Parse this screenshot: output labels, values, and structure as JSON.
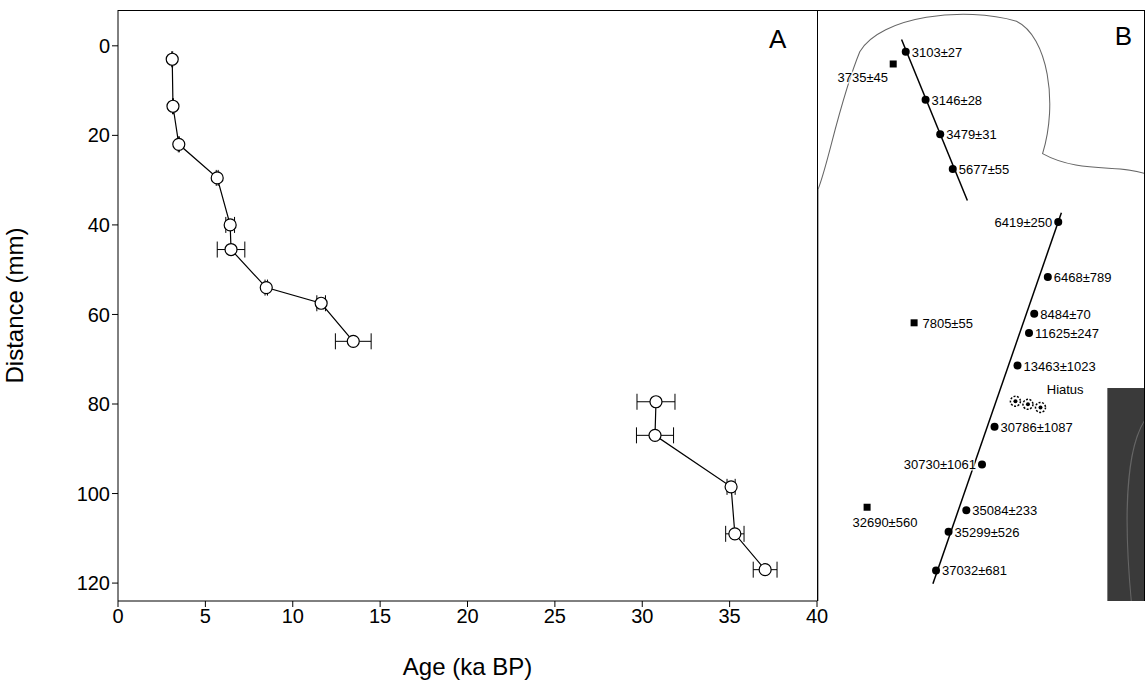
{
  "chart_data": {
    "type": "line",
    "title": "A",
    "x_label": "Age (ka BP)",
    "y_label": "Distance (mm)",
    "xlim": [
      0,
      40
    ],
    "xticks": [
      0,
      5,
      10,
      15,
      20,
      25,
      30,
      35,
      40
    ],
    "ylim": [
      -8,
      124
    ],
    "yticks": [
      0,
      20,
      40,
      60,
      80,
      100,
      120
    ],
    "log": false,
    "grid": false,
    "series": [
      {
        "color": "#000000",
        "marker": "circle",
        "line_style": "solid",
        "x": [
          3.103,
          3.146,
          3.479,
          5.677,
          6.419,
          6.468,
          8.484,
          11.625,
          13.463
        ],
        "values": [
          3,
          13.5,
          22,
          29.5,
          40,
          45.5,
          54,
          57.5,
          66
        ],
        "x_error": [
          0.027,
          0.028,
          0.031,
          0.055,
          0.25,
          0.789,
          0.07,
          0.247,
          1.023
        ]
      },
      {
        "color": "#000000",
        "marker": "circle",
        "line_style": "solid",
        "x": [
          30.786,
          30.73,
          35.084,
          35.299,
          37.032
        ],
        "values": [
          79.5,
          87,
          98.5,
          109,
          117
        ],
        "x_error": [
          1.087,
          1.061,
          0.233,
          0.526,
          0.681
        ]
      }
    ]
  },
  "panel_b": {
    "letter": "B",
    "hiatus": "Hiatus",
    "dated_points": [
      "3103±27",
      "3146±28",
      "3479±31",
      "5677±55",
      "6419±250",
      "6468±789",
      "8484±70",
      "11625±247",
      "13463±1023",
      "30786±1087",
      "30730±1061",
      "35084±233",
      "35299±526",
      "37032±681"
    ],
    "other_points": [
      "3735±45",
      "7805±55",
      "32690±560"
    ]
  }
}
